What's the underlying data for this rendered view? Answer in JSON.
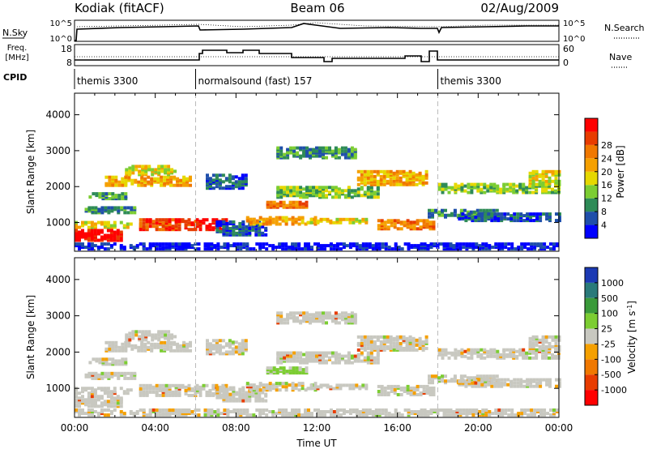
{
  "header": {
    "radar": "Kodiak (fitACF)",
    "beam": "Beam 06",
    "date": "02/Aug/2009"
  },
  "summary": {
    "nsky_label": "N.Sky",
    "nsearch_label": "N.Search",
    "nsky_ticks": [
      "10^5",
      "10^0"
    ],
    "nsearch_ticks": [
      "10^5",
      "10^0"
    ],
    "freq_label_line1": "Freq.",
    "freq_label_line2": "[MHz]",
    "freq_ticks": [
      "18",
      "8"
    ],
    "nave_label": "Nave",
    "nave_ticks": [
      "60",
      "0"
    ],
    "cpid_label": "CPID"
  },
  "cpid_segments": [
    {
      "name": "themis 3300",
      "start_hour": 0,
      "end_hour": 6
    },
    {
      "name": "normalsound (fast) 157",
      "start_hour": 6,
      "end_hour": 18
    },
    {
      "name": "themis 3300",
      "start_hour": 18,
      "end_hour": 24
    }
  ],
  "chart_data": [
    {
      "type": "heatmap",
      "title": "",
      "ylabel": "Slant Range [km]",
      "xlabel": "",
      "ylim": [
        200,
        4600
      ],
      "yticks": [
        1000,
        2000,
        3000,
        4000
      ],
      "xlim": [
        0,
        24
      ],
      "colorbar": {
        "label": "Power [dB]",
        "ticks": [
          "4",
          "8",
          "12",
          "16",
          "20",
          "24",
          "28"
        ],
        "colors": [
          "#0000ff",
          "#1f4faa",
          "#2e8b57",
          "#7ccd32",
          "#e6d800",
          "#f5a000",
          "#f07800",
          "#e83c00",
          "#ff0000"
        ]
      }
    },
    {
      "type": "heatmap",
      "title": "",
      "ylabel": "Slant Range [km]",
      "xlabel": "Time UT",
      "ylim": [
        200,
        4600
      ],
      "yticks": [
        1000,
        2000,
        3000,
        4000
      ],
      "xlim": [
        0,
        24
      ],
      "xticks": [
        "00:00",
        "04:00",
        "08:00",
        "12:00",
        "16:00",
        "20:00",
        "00:00"
      ],
      "colorbar": {
        "label": "Velocity [m s",
        "label_sup": "-1",
        "label_end": "]",
        "ticks": [
          "1000",
          "500",
          "100",
          "25",
          "-25",
          "-100",
          "-500",
          "-1000"
        ],
        "colors": [
          "#1c3ab4",
          "#2a7a7a",
          "#3a9a3a",
          "#7ccd32",
          "#c8c8c0",
          "#f5a000",
          "#f07800",
          "#e83c00",
          "#ff0000"
        ]
      }
    }
  ]
}
